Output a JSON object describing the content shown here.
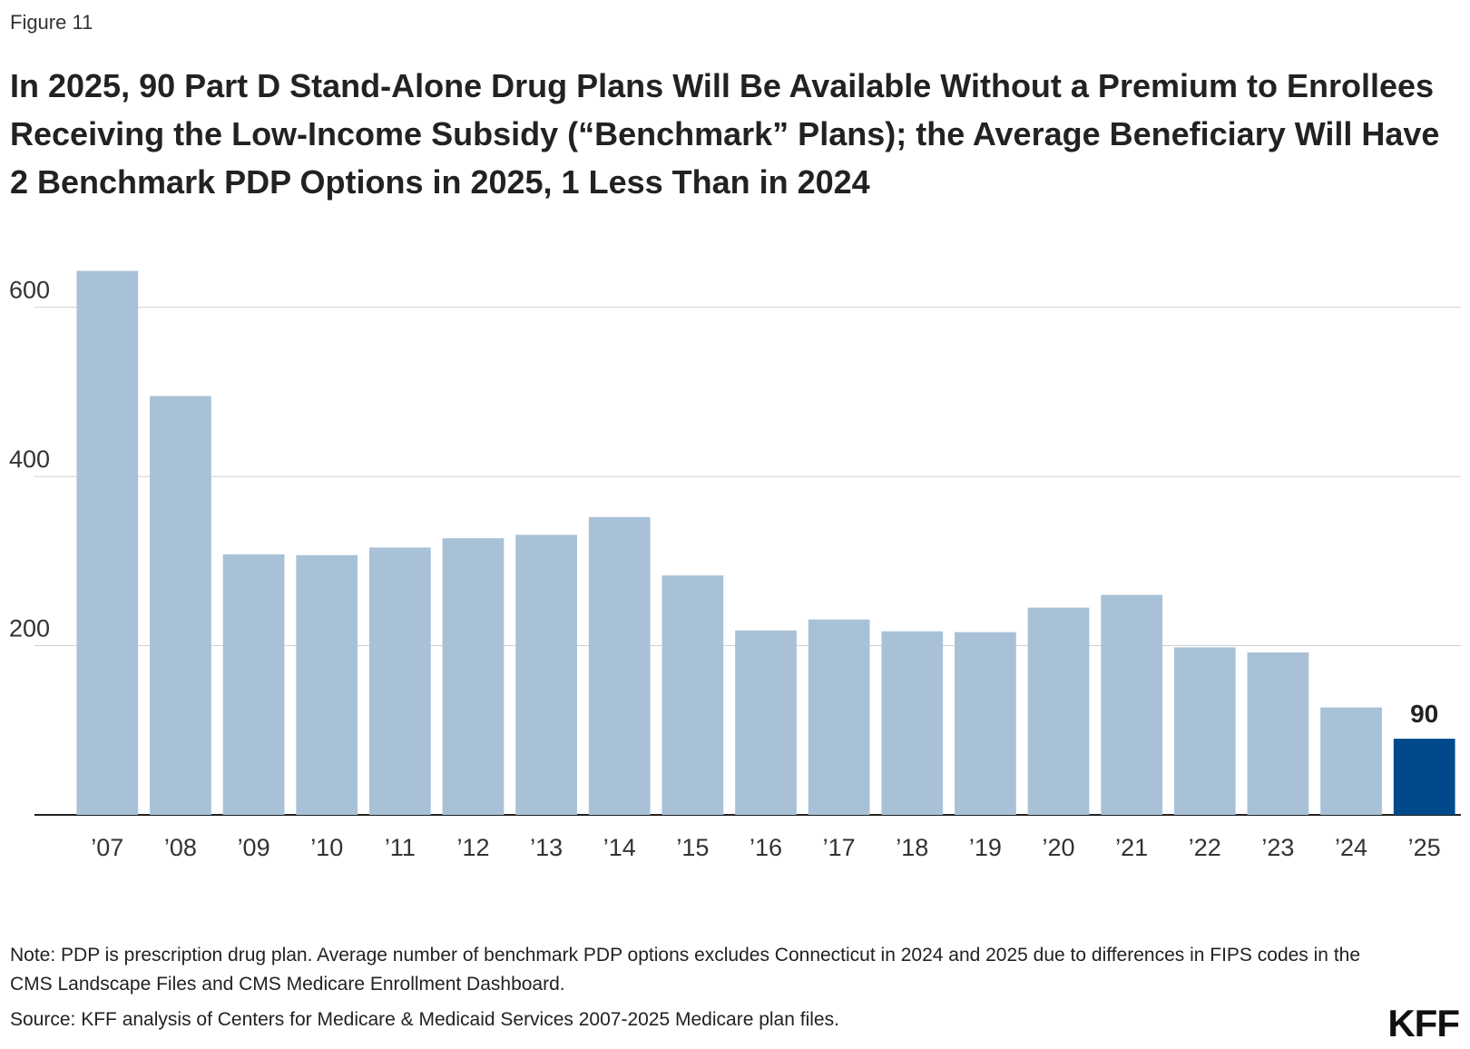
{
  "chart_data": {
    "type": "bar",
    "figure_label": "Figure 11",
    "title": "In 2025, 90 Part D Stand-Alone Drug Plans Will Be Available Without a Premium to Enrollees Receiving the Low-Income Subsidy (“Benchmark” Plans); the Average Beneficiary Will Have 2 Benchmark PDP Options in 2025, 1 Less Than in 2024",
    "categories": [
      "’07",
      "’08",
      "’09",
      "’10",
      "’11",
      "’12",
      "’13",
      "’14",
      "’15",
      "’16",
      "’17",
      "’18",
      "’19",
      "’20",
      "’21",
      "’22",
      "’23",
      "’24",
      "’25"
    ],
    "values": [
      643,
      495,
      308,
      307,
      316,
      327,
      331,
      352,
      283,
      218,
      231,
      217,
      216,
      245,
      260,
      198,
      192,
      127,
      90
    ],
    "colors": [
      "#a8c1d6",
      "#a8c1d6",
      "#a8c1d6",
      "#a8c1d6",
      "#a8c1d6",
      "#a8c1d6",
      "#a8c1d6",
      "#a8c1d6",
      "#a8c1d6",
      "#a8c1d6",
      "#a8c1d6",
      "#a8c1d6",
      "#a8c1d6",
      "#a8c1d6",
      "#a8c1d6",
      "#a8c1d6",
      "#a8c1d6",
      "#a8c1d6",
      "#004a8c"
    ],
    "labeled_index": 18,
    "ylim": [
      0,
      650
    ],
    "yticks": [
      200,
      400,
      600
    ],
    "grid": true,
    "note": "Note: PDP is prescription drug plan. Average number of benchmark PDP options excludes Connecticut in 2024 and 2025 due to differences in FIPS codes in the CMS Landscape Files and CMS Medicare Enrollment Dashboard.",
    "source": "Source: KFF analysis of Centers for Medicare & Medicaid Services 2007-2025 Medicare plan files.",
    "logo": "KFF"
  }
}
